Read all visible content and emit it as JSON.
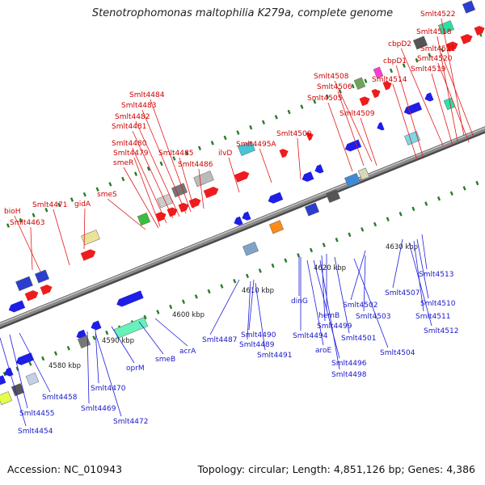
{
  "title": "Stenotrophomonas maltophilia K279a, complete genome",
  "footer": {
    "accession": "Accession: NC_010943",
    "summary": "Topology: circular; Length: 4,851,126 bp; Genes: 4,386"
  },
  "colors": {
    "forward": "#ee1c1c",
    "reverse": "#1e1ee6",
    "backbone": "#8a8a8a",
    "tick": "#2a7a2a"
  },
  "scale": [
    "4580 kbp",
    "4590 kbp",
    "4600 kbp",
    "4610 kbp",
    "4620 kbp",
    "4630 kbp"
  ],
  "forward_labels": [
    "Smlt4522",
    "Smlt4518",
    "cbpD2",
    "Smlt4521",
    "Smlt4520",
    "cbpD1",
    "Smlt4519",
    "Smlt4514",
    "Smlt4508",
    "Smlt4506",
    "Smlt4505",
    "Smlt4509",
    "Smlt4484",
    "Smlt4483",
    "Smlt4482",
    "Smlt4481",
    "Smlt4500",
    "Smlt4480",
    "Smlt4479",
    "Smlt4485",
    "smeR",
    "Smlt4486",
    "Smlt4495A",
    "ilvD",
    "smeS",
    "Smlt4471",
    "gidA",
    "bioH",
    "Smlt4463"
  ],
  "reverse_labels": [
    "Smlt4513",
    "Smlt4507",
    "Smlt4510",
    "Smlt4511",
    "Smlt4512",
    "Smlt4502",
    "Smlt4503",
    "Smlt4504",
    "hemB",
    "Smlt4499",
    "Smlt4501",
    "dinG",
    "Smlt4494",
    "aroE",
    "Smlt4496",
    "Smlt4498",
    "Smlt4487",
    "Smlt4490",
    "Smlt4489",
    "Smlt4491",
    "acrA",
    "smeB",
    "oprM",
    "Smlt4470",
    "Smlt4469",
    "Smlt4472",
    "Smlt4458",
    "Smlt4455",
    "Smlt4454"
  ]
}
